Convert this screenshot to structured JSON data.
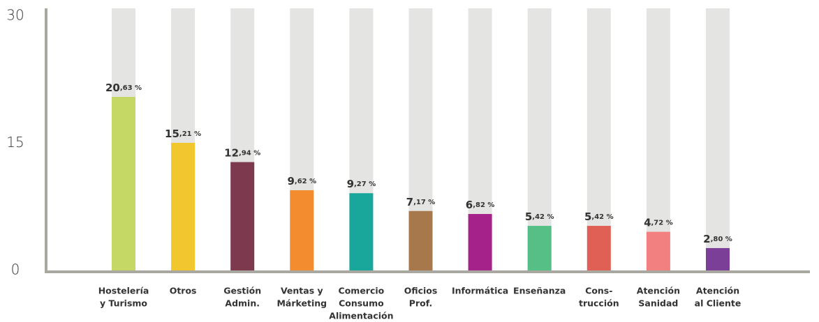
{
  "chart_data": {
    "type": "bar",
    "categories": [
      [
        "Hostelería",
        "y Turismo"
      ],
      [
        "Otros"
      ],
      [
        "Gestión",
        "Admin."
      ],
      [
        "Ventas y",
        "Márketing"
      ],
      [
        "Comercio",
        "Consumo",
        "Alimentación"
      ],
      [
        "Oficios",
        "Prof."
      ],
      [
        "Informática"
      ],
      [
        "Enseñanza"
      ],
      [
        "Cons-",
        "trucción"
      ],
      [
        "Atención",
        "Sanidad"
      ],
      [
        "Atención",
        "al Cliente"
      ]
    ],
    "values": [
      20.63,
      15.21,
      12.94,
      9.62,
      9.27,
      7.17,
      6.82,
      5.42,
      5.42,
      4.72,
      2.8
    ],
    "value_labels": [
      "20,63 %",
      "15,21 %",
      "12,94 %",
      "9,62 %",
      "9,27 %",
      "7,17 %",
      "6,82 %",
      "5,42 %",
      "5,42 %",
      "4,72 %",
      "2,80 %"
    ],
    "colors": [
      "#c5d866",
      "#f2c62f",
      "#7d3a4e",
      "#f28c2e",
      "#1aa79b",
      "#a6784b",
      "#a5228b",
      "#55bf86",
      "#e06055",
      "#f28080",
      "#7b3f98"
    ],
    "ylim": [
      0,
      30
    ],
    "yticks": [
      0,
      15,
      30
    ]
  }
}
